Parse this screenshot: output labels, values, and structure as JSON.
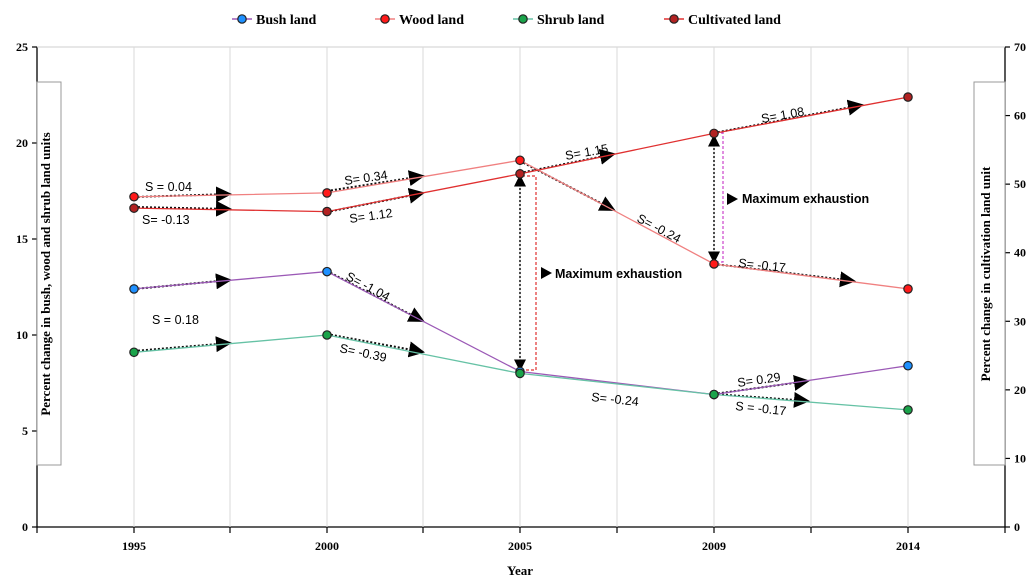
{
  "chart_data": {
    "type": "line",
    "xlabel": "Year",
    "ylabel_left": "Percent change in bush, wood and shrub land units",
    "ylabel_right": "Percent change in cultivation land unit",
    "categories": [
      "1995",
      "2000",
      "2005",
      "2009",
      "2014"
    ],
    "y_left_lim": [
      0,
      25
    ],
    "y_left_ticks": [
      "0",
      "5",
      "10",
      "15",
      "20",
      "25"
    ],
    "y_right_lim": [
      0,
      70
    ],
    "y_right_ticks": [
      "0",
      "10",
      "20",
      "30",
      "40",
      "50",
      "60",
      "70"
    ],
    "grid": "vertical",
    "legend_position": "top",
    "series": [
      {
        "name": "Bush land",
        "axis": "left",
        "color": "#9b59b6",
        "marker_color": "#1e90ff",
        "values": [
          12.4,
          13.3,
          8.1,
          6.9,
          8.4
        ]
      },
      {
        "name": "Wood land",
        "axis": "left",
        "color": "#f08080",
        "marker_color": "#ff1a1a",
        "values": [
          17.2,
          17.4,
          19.1,
          13.7,
          12.4
        ]
      },
      {
        "name": "Shrub land",
        "axis": "left",
        "color": "#66c2a5",
        "marker_color": "#1aa34a",
        "values": [
          9.1,
          10.0,
          8.0,
          6.9,
          6.1
        ]
      },
      {
        "name": "Cultivated land",
        "axis": "right",
        "color": "#e03030",
        "marker_color": "#b22222",
        "values": [
          46.5,
          46.0,
          51.5,
          57.4,
          62.7
        ]
      }
    ],
    "annotations": {
      "slopes": [
        "S = 0.04",
        "S= -0.13",
        "S= 0.34",
        "S= 1.12",
        "S= 1.15",
        "S= 1.08",
        "S= -0.24",
        "S= -0.17",
        "S = 0.18",
        "S= -1.04",
        "S= -0.39",
        "S= -0.24",
        "S= 0.29",
        "S = -0.17"
      ],
      "max_exhaustion_1": "Maximum exhaustion",
      "max_exhaustion_2": "Maximum exhaustion"
    }
  }
}
